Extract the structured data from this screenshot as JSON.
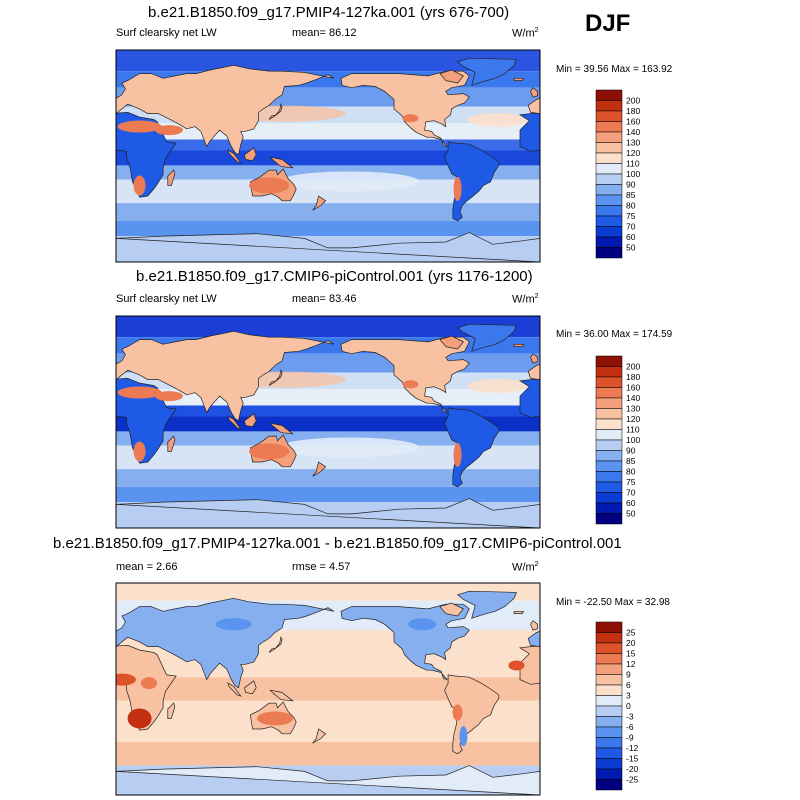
{
  "season": "DJF",
  "colors": {
    "ocean_base": "#dbe8f7",
    "land_base": "#f3b08e",
    "coast": "#222222"
  },
  "panels": [
    {
      "title": "b.e21.B1850.f09_g17.PMIP4-127ka.001 (yrs 676-700)",
      "variable": "Surf clearsky net LW",
      "mean_text": "mean=  86.12",
      "units": "W/m",
      "units_sup": "2",
      "minmax": "Min =  39.56 Max = 163.92"
    },
    {
      "title": "b.e21.B1850.f09_g17.CMIP6-piControl.001 (yrs 1176-1200)",
      "variable": "Surf clearsky net LW",
      "mean_text": "mean=  83.46",
      "units": "W/m",
      "units_sup": "2",
      "minmax": "Min =  36.00 Max = 174.59"
    },
    {
      "title": "b.e21.B1850.f09_g17.PMIP4-127ka.001 - b.e21.B1850.f09_g17.CMIP6-piControl.001",
      "mean_text": "mean =  2.66",
      "rmse_text": "rmse =  4.57",
      "units": "W/m",
      "units_sup": "2",
      "minmax": "Min = -22.50 Max =  32.98"
    }
  ],
  "chart_data": [
    {
      "type": "heatmap",
      "title": "b.e21.B1850.f09_g17.PMIP4-127ka.001 (yrs 676-700)",
      "variable": "Surf clearsky net LW",
      "units": "W/m2",
      "season": "DJF",
      "mean": 86.12,
      "min": 39.56,
      "max": 163.92,
      "x_range": [
        0,
        360
      ],
      "y_range": [
        -90,
        90
      ],
      "colorbar": {
        "levels": [
          "50",
          "60",
          "70",
          "75",
          "80",
          "85",
          "90",
          "100",
          "110",
          "120",
          "130",
          "140",
          "160",
          "180",
          "200"
        ],
        "colors": [
          "#000080",
          "#0019b0",
          "#0a3cd4",
          "#1e5ae6",
          "#3b78ee",
          "#5a93f0",
          "#86afef",
          "#b7cdf2",
          "#e2ebf8",
          "#fbe0cc",
          "#f8c1a2",
          "#f4a07c",
          "#ec7a52",
          "#dd5228",
          "#c23010",
          "#8c1003"
        ]
      }
    },
    {
      "type": "heatmap",
      "title": "b.e21.B1850.f09_g17.CMIP6-piControl.001 (yrs 1176-1200)",
      "variable": "Surf clearsky net LW",
      "units": "W/m2",
      "season": "DJF",
      "mean": 83.46,
      "min": 36.0,
      "max": 174.59,
      "x_range": [
        0,
        360
      ],
      "y_range": [
        -90,
        90
      ],
      "colorbar": {
        "levels": [
          "50",
          "60",
          "70",
          "75",
          "80",
          "85",
          "90",
          "100",
          "110",
          "120",
          "130",
          "140",
          "160",
          "180",
          "200"
        ],
        "colors": [
          "#000080",
          "#0019b0",
          "#0a3cd4",
          "#1e5ae6",
          "#3b78ee",
          "#5a93f0",
          "#86afef",
          "#b7cdf2",
          "#e2ebf8",
          "#fbe0cc",
          "#f8c1a2",
          "#f4a07c",
          "#ec7a52",
          "#dd5228",
          "#c23010",
          "#8c1003"
        ]
      }
    },
    {
      "type": "heatmap",
      "title": "b.e21.B1850.f09_g17.PMIP4-127ka.001 - b.e21.B1850.f09_g17.CMIP6-piControl.001",
      "units": "W/m2",
      "season": "DJF",
      "mean": 2.66,
      "rmse": 4.57,
      "min": -22.5,
      "max": 32.98,
      "x_range": [
        0,
        360
      ],
      "y_range": [
        -90,
        90
      ],
      "colorbar": {
        "levels": [
          "-25",
          "-20",
          "-15",
          "-12",
          "-9",
          "-6",
          "-3",
          "0",
          "3",
          "6",
          "9",
          "12",
          "15",
          "20",
          "25"
        ],
        "colors": [
          "#000080",
          "#0019b0",
          "#0a3cd4",
          "#1e5ae6",
          "#3b78ee",
          "#5a93f0",
          "#86afef",
          "#b7cdf2",
          "#e2ebf8",
          "#fbe0cc",
          "#f8c1a2",
          "#f4a07c",
          "#ec7a52",
          "#dd5228",
          "#c23010",
          "#8c1003"
        ]
      }
    }
  ]
}
